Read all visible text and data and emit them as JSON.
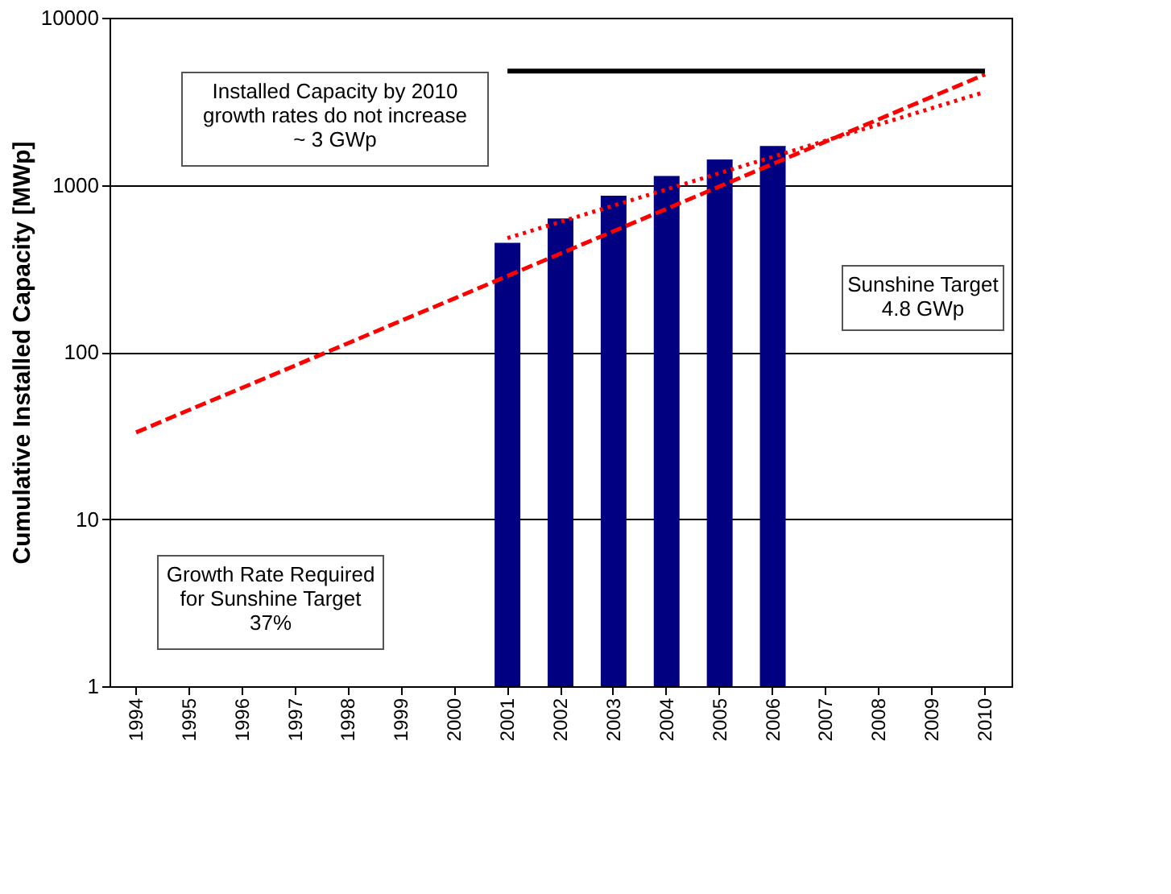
{
  "chart_data": {
    "type": "bar",
    "ylabel": "Cumulative Installed Capacity [MWp]",
    "categories": [
      "1994",
      "1995",
      "1996",
      "1997",
      "1998",
      "1999",
      "2000",
      "2001",
      "2002",
      "2003",
      "2004",
      "2005",
      "2006",
      "2007",
      "2008",
      "2009",
      "2010"
    ],
    "series": [
      {
        "color": "#000080",
        "values": [
          null,
          null,
          null,
          null,
          null,
          null,
          null,
          450,
          630,
          860,
          1130,
          1420,
          1710,
          null,
          null,
          null,
          null
        ]
      },
      {
        "type": "line",
        "color": "#ff0000",
        "line_style": "dashed",
        "values": [
          33,
          45,
          61,
          83,
          113,
          154,
          209,
          285,
          388,
          528,
          719,
          979,
          1333,
          1815,
          2471,
          3364,
          4580
        ]
      },
      {
        "type": "line",
        "color": "#ff0000",
        "line_style": "dotted",
        "values": [
          null,
          null,
          null,
          null,
          null,
          null,
          null,
          480,
          null,
          null,
          null,
          null,
          null,
          null,
          null,
          null,
          3600
        ]
      },
      {
        "type": "line",
        "color": "#000000",
        "line_style": "solid",
        "values": [
          null,
          null,
          null,
          null,
          null,
          null,
          null,
          4800,
          null,
          null,
          null,
          null,
          null,
          null,
          null,
          null,
          4800
        ]
      }
    ],
    "log": true,
    "ylim": [
      1,
      10000
    ],
    "yticks": [
      1,
      10,
      100,
      1000,
      10000
    ],
    "grid": "y",
    "annotations": [
      "Installed Capacity by 2010\ngrowth rates do not increase\n~ 3 GWp",
      "Sunshine Target\n4.8 GWp",
      "Growth Rate Required\nfor Sunshine Target\n37%"
    ]
  }
}
